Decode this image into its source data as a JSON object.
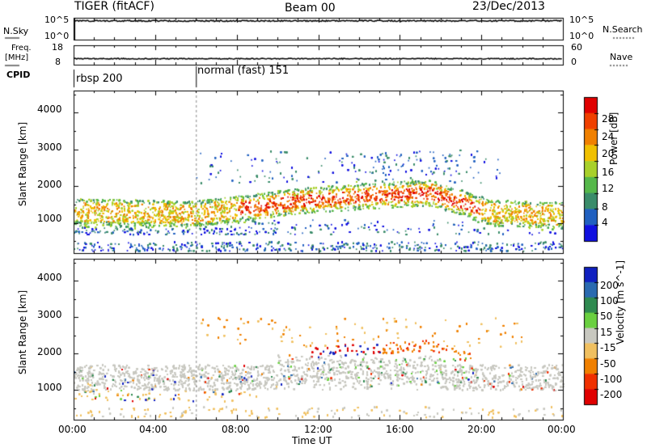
{
  "header": {
    "radar": "TIGER (fitACF)",
    "beam": "Beam 00",
    "date": "23/Dec/2013"
  },
  "nsky_panel": {
    "label": "N.Sky",
    "tick_top": "10^5",
    "tick_bottom": "10^0",
    "right_label": "N.Search",
    "right_tick_top": "10^5",
    "right_tick_bottom": "10^0"
  },
  "freq_panel": {
    "label_line1": "Freq.",
    "label_line2": "[MHz]",
    "tick_top": "18",
    "tick_bottom": "8",
    "right_label": "Nave",
    "right_tick_top": "60",
    "right_tick_bottom": "0"
  },
  "cpid": {
    "label": "CPID",
    "segments": [
      {
        "name": "rbsp 200",
        "start_hour": 0
      },
      {
        "name": "normal (fast) 151",
        "start_hour": 6
      }
    ]
  },
  "chart_data": [
    {
      "type": "heatmap",
      "panel": "power",
      "ylabel": "Slant Range [km]",
      "ylim": [
        180,
        4600
      ],
      "y_ticks": [
        1000,
        2000,
        3000,
        4000
      ],
      "colorbar": {
        "label": "Power [dB]",
        "range": [
          0,
          32
        ],
        "ticks": [
          "4",
          "8",
          "12",
          "16",
          "20",
          "24",
          "28"
        ],
        "colors": [
          "#1010e0",
          "#2060c0",
          "#3a8c6a",
          "#55b84a",
          "#a8d02a",
          "#f0c000",
          "#f08000",
          "#f04000",
          "#e00000"
        ]
      }
    },
    {
      "type": "heatmap",
      "panel": "velocity",
      "ylabel": "Slant Range [km]",
      "ylim": [
        180,
        4600
      ],
      "y_ticks": [
        1000,
        2000,
        3000,
        4000
      ],
      "colorbar": {
        "label": "Velocity [m s^-1]",
        "ticks": [
          "200",
          "100",
          "50",
          "15",
          "-15",
          "-50",
          "-100",
          "-200"
        ],
        "colors": [
          "#1020c0",
          "#2a6ab0",
          "#2f8a50",
          "#6ad040",
          "#c8c8c0",
          "#f0c060",
          "#f08000",
          "#f03000",
          "#e00000"
        ]
      }
    }
  ],
  "x_axis": {
    "label": "Time UT",
    "xlim_hours": [
      0,
      24
    ],
    "ticks": [
      "00:00",
      "04:00",
      "08:00",
      "12:00",
      "16:00",
      "20:00",
      "00:00"
    ]
  }
}
